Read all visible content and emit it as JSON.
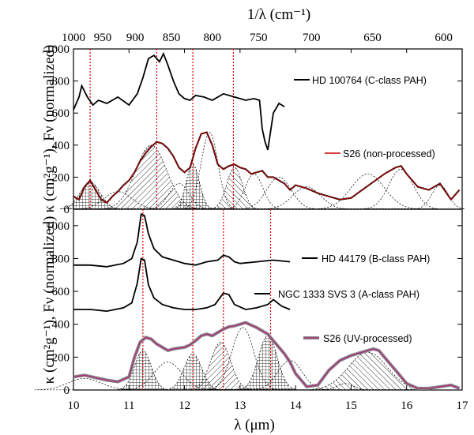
{
  "chart_data": {
    "type": "line",
    "top_axis": {
      "label": "1/λ (cm⁻¹)",
      "ticks": [
        1000,
        950,
        900,
        850,
        800,
        750,
        700,
        650,
        600
      ]
    },
    "x_axis": {
      "label": "λ (μm)",
      "range": [
        10,
        17
      ],
      "ticks": [
        10,
        11,
        12,
        13,
        14,
        15,
        16,
        17
      ]
    },
    "panels": [
      {
        "id": "top",
        "ylabel": "κ (cm²g⁻¹), Fν (normalized)",
        "ylim": [
          0,
          1000
        ],
        "yticks": [
          0,
          200,
          400,
          600,
          800,
          1000
        ],
        "vlines": [
          10.3,
          11.5,
          12.15,
          12.88
        ],
        "series": [
          {
            "name": "HD 100764 (C-class PAH)",
            "color": "#000000",
            "x": [
              10.0,
              10.1,
              10.15,
              10.25,
              10.35,
              10.45,
              10.6,
              10.8,
              11.0,
              11.15,
              11.25,
              11.35,
              11.45,
              11.55,
              11.62,
              11.7,
              11.8,
              11.9,
              12.0,
              12.1,
              12.2,
              12.35,
              12.5,
              12.7,
              12.9,
              13.0,
              13.1,
              13.25,
              13.35,
              13.4,
              13.45,
              13.5,
              13.6,
              13.7,
              13.8
            ],
            "y": [
              620,
              700,
              770,
              700,
              650,
              680,
              660,
              700,
              650,
              720,
              820,
              940,
              960,
              920,
              970,
              900,
              800,
              720,
              690,
              680,
              710,
              700,
              680,
              720,
              700,
              690,
              680,
              690,
              680,
              500,
              420,
              370,
              600,
              660,
              640
            ]
          },
          {
            "name": "S26 (non-processed)",
            "color": "#cc0000",
            "x": [
              10.0,
              10.1,
              10.2,
              10.3,
              10.4,
              10.5,
              10.6,
              10.7,
              10.8,
              10.9,
              11.0,
              11.1,
              11.2,
              11.3,
              11.4,
              11.5,
              11.6,
              11.7,
              11.8,
              11.9,
              12.0,
              12.1,
              12.2,
              12.3,
              12.4,
              12.5,
              12.6,
              12.7,
              12.8,
              12.9,
              13.0,
              13.1,
              13.2,
              13.3,
              13.4,
              13.5,
              13.6,
              13.7,
              13.8,
              13.9,
              14.0,
              14.2,
              14.4,
              14.6,
              14.8,
              15.0,
              15.2,
              15.4,
              15.6,
              15.8,
              15.9,
              16.0,
              16.2,
              16.4,
              16.6,
              16.8,
              16.95
            ],
            "y": [
              80,
              60,
              140,
              180,
              120,
              60,
              40,
              80,
              110,
              150,
              180,
              230,
              300,
              350,
              390,
              420,
              410,
              380,
              330,
              260,
              230,
              260,
              380,
              470,
              480,
              400,
              280,
              250,
              270,
              280,
              260,
              250,
              220,
              230,
              240,
              200,
              200,
              180,
              160,
              120,
              150,
              130,
              100,
              80,
              60,
              70,
              120,
              170,
              220,
              260,
              270,
              220,
              140,
              120,
              160,
              60,
              120
            ]
          }
        ]
      },
      {
        "id": "bottom",
        "ylabel": "κ (cm²g⁻¹), Fν (normalized)",
        "ylim": [
          0,
          1100
        ],
        "yticks": [
          0,
          200,
          400,
          600,
          800,
          1000
        ],
        "vlines": [
          11.25,
          12.15,
          12.7,
          13.55
        ],
        "series": [
          {
            "name": "HD 44179 (B-class PAH)",
            "color": "#000000",
            "x": [
              10.0,
              10.3,
              10.6,
              10.9,
              11.05,
              11.15,
              11.22,
              11.28,
              11.35,
              11.45,
              11.6,
              11.8,
              12.0,
              12.2,
              12.4,
              12.6,
              12.7,
              12.8,
              12.9,
              13.0,
              13.3,
              13.6,
              13.9
            ],
            "y": [
              760,
              760,
              750,
              770,
              800,
              900,
              1070,
              1060,
              950,
              860,
              810,
              790,
              770,
              760,
              780,
              790,
              820,
              810,
              780,
              770,
              780,
              790,
              780
            ]
          },
          {
            "name": "NGC 1333 SVS 3 (A-class PAH)",
            "color": "#000000",
            "x": [
              10.0,
              10.3,
              10.6,
              10.9,
              11.05,
              11.15,
              11.22,
              11.28,
              11.35,
              11.45,
              11.6,
              11.8,
              12.0,
              12.2,
              12.4,
              12.55,
              12.7,
              12.8,
              12.9,
              13.1,
              13.3,
              13.5,
              13.6,
              13.75,
              13.9
            ],
            "y": [
              490,
              490,
              480,
              500,
              530,
              650,
              800,
              790,
              640,
              560,
              520,
              500,
              490,
              490,
              500,
              520,
              590,
              580,
              520,
              490,
              500,
              520,
              550,
              510,
              490
            ]
          },
          {
            "name": "S26 (UV-processed)",
            "color": "#b0287a",
            "x": [
              10.0,
              10.2,
              10.4,
              10.6,
              10.8,
              11.0,
              11.1,
              11.2,
              11.3,
              11.4,
              11.5,
              11.6,
              11.7,
              11.8,
              11.9,
              12.0,
              12.1,
              12.2,
              12.3,
              12.4,
              12.5,
              12.6,
              12.7,
              12.8,
              12.9,
              13.0,
              13.1,
              13.2,
              13.3,
              13.4,
              13.5,
              13.6,
              13.7,
              13.8,
              13.9,
              14.0,
              14.1,
              14.2,
              14.4,
              14.6,
              14.8,
              15.0,
              15.2,
              15.4,
              15.5,
              15.6,
              15.8,
              16.0,
              16.2,
              16.4,
              16.6,
              16.8,
              16.95
            ],
            "y": [
              80,
              90,
              75,
              60,
              50,
              80,
              200,
              290,
              320,
              310,
              280,
              260,
              240,
              250,
              255,
              260,
              275,
              300,
              330,
              340,
              330,
              350,
              370,
              385,
              390,
              400,
              410,
              395,
              380,
              360,
              340,
              300,
              260,
              220,
              170,
              100,
              60,
              20,
              30,
              120,
              180,
              210,
              230,
              250,
              240,
              200,
              120,
              40,
              10,
              10,
              20,
              30,
              10
            ]
          }
        ]
      }
    ]
  }
}
